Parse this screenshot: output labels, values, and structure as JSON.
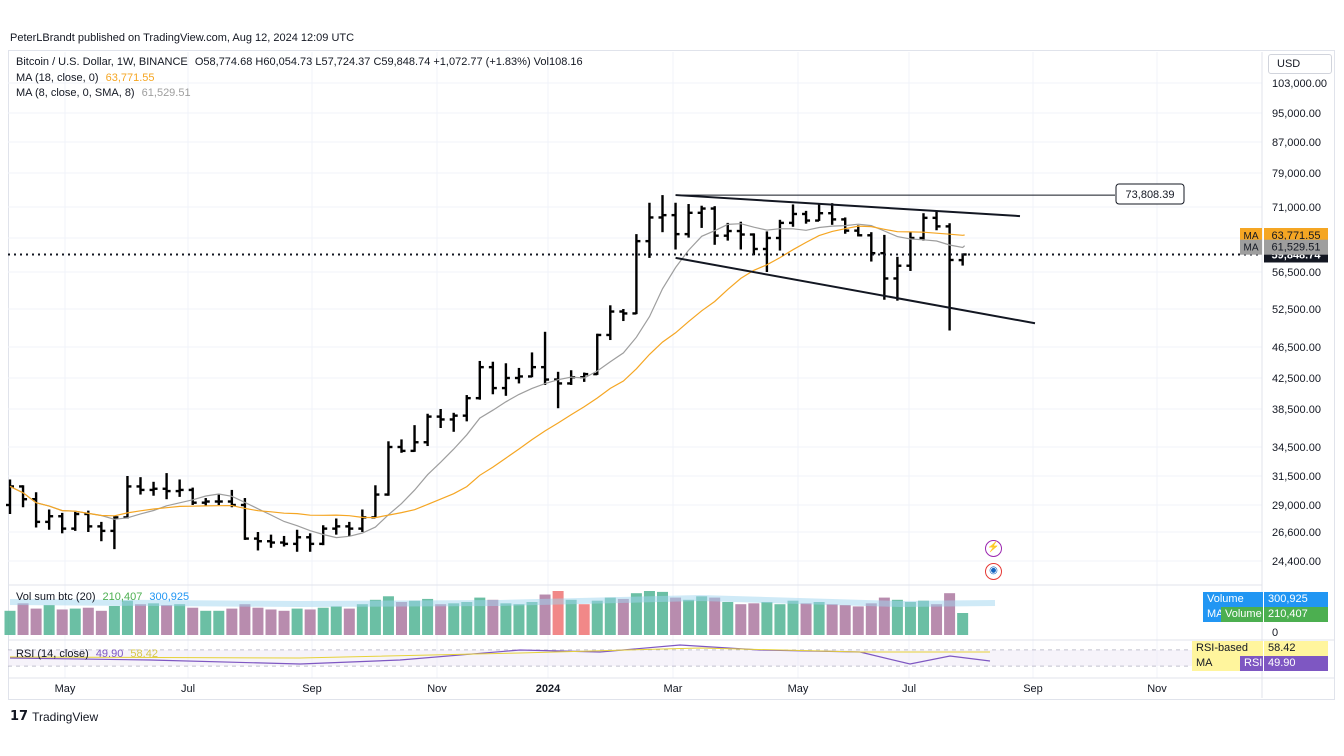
{
  "header": {
    "published_line": "PeterLBrandt published on TradingView.com, Aug 12, 2024 12:09 UTC"
  },
  "legend": {
    "symbol_line": "Bitcoin / U.S. Dollar, 1W, BINANCE",
    "ohlc": "O58,774.68 H60,054.73 L57,724.37 C59,848.74 +1,072.77 (+1.83%) Vol108.16",
    "ma1_label": "MA (18, close, 0)",
    "ma1_value": "63,771.55",
    "ma2_label": "MA (8, close, 0, SMA, 8)",
    "ma2_value": "61,529.51"
  },
  "price_axis": {
    "currency": "USD",
    "ticks": [
      "103,000.00",
      "95,000.00",
      "87,000.00",
      "79,000.00",
      "71,000.00",
      "63,000.00",
      "56,500.00",
      "52,500.00",
      "46,500.00",
      "42,500.00",
      "38,500.00",
      "34,500.00",
      "31,500.00",
      "29,000.00",
      "26,600.00",
      "24,400.00"
    ],
    "ma1_tag": "MA",
    "ma1_tag_value": "63,771.55",
    "ma2_tag": "MA",
    "ma2_tag_value": "61,529.51",
    "last_price": "59,848.74"
  },
  "annotation": {
    "high_label": "73,808.39"
  },
  "volume_pane": {
    "legend": "Vol sum btc (20)",
    "val1": "210,407",
    "val2": "300,925",
    "tag_ma_label": "Volume MA",
    "tag_ma_value": "300,925",
    "tag_vol_label": "Volume",
    "tag_vol_value": "210,407",
    "axis_zero": "0"
  },
  "rsi_pane": {
    "legend": "RSI (14, close)",
    "val1": "49.90",
    "val2": "58.42",
    "tag_ma_label": "RSI-based MA",
    "tag_ma_value": "58.42",
    "tag_rsi_label": "RSI",
    "tag_rsi_value": "49.90"
  },
  "time_axis": [
    "May",
    "Jul",
    "Sep",
    "Nov",
    "2024",
    "Mar",
    "May",
    "Jul",
    "Sep",
    "Nov"
  ],
  "footer": {
    "brand": "TradingView"
  },
  "colors": {
    "bar": "#000000",
    "ma18": "#f5a623",
    "ma8": "#9e9e9e",
    "vol_up": "#5bb89a",
    "vol_down": "#b07fa5",
    "vol_hi": "#ef7b7b",
    "rsi": "#7e57c2",
    "tag_vol_ma": "#2196f3",
    "tag_vol": "#4caf50",
    "tag_rsi_ma": "#fff59d",
    "tag_rsi": "#7e57c2"
  },
  "chart_data": {
    "type": "bar",
    "title": "",
    "interval": "1W",
    "ohlc_weekly": [
      [
        29000,
        31200,
        28200,
        30600
      ],
      [
        30600,
        30700,
        28800,
        29500
      ],
      [
        29500,
        30100,
        27000,
        27500
      ],
      [
        27500,
        28600,
        26800,
        28000
      ],
      [
        28000,
        28300,
        26500,
        26900
      ],
      [
        26900,
        28400,
        26700,
        28200
      ],
      [
        28200,
        28500,
        26600,
        27100
      ],
      [
        27100,
        27500,
        25900,
        26700
      ],
      [
        26700,
        28000,
        25300,
        27900
      ],
      [
        27900,
        31500,
        27800,
        30600
      ],
      [
        30600,
        31400,
        29900,
        30300
      ],
      [
        30300,
        31000,
        29800,
        30400
      ],
      [
        30400,
        31800,
        29500,
        30200
      ],
      [
        30200,
        31200,
        29700,
        30300
      ],
      [
        30300,
        30500,
        29000,
        29200
      ],
      [
        29200,
        29600,
        28900,
        29300
      ],
      [
        29300,
        29900,
        29000,
        29300
      ],
      [
        29300,
        30300,
        28800,
        29000
      ],
      [
        29000,
        29600,
        26000,
        26100
      ],
      [
        26100,
        26600,
        25200,
        25900
      ],
      [
        25900,
        26400,
        25400,
        25800
      ],
      [
        25800,
        26300,
        25500,
        25700
      ],
      [
        25700,
        26800,
        25100,
        26200
      ],
      [
        26200,
        26500,
        25100,
        25700
      ],
      [
        25700,
        27200,
        25600,
        26900
      ],
      [
        26900,
        27800,
        26400,
        27100
      ],
      [
        27100,
        27500,
        26300,
        26900
      ],
      [
        26900,
        28600,
        26600,
        27900
      ],
      [
        27900,
        30700,
        27900,
        29900
      ],
      [
        29900,
        35100,
        29800,
        34500
      ],
      [
        34500,
        35300,
        33900,
        34100
      ],
      [
        34100,
        36800,
        34000,
        35000
      ],
      [
        35000,
        38000,
        34600,
        37700
      ],
      [
        37700,
        38500,
        36500,
        37400
      ],
      [
        37400,
        38100,
        36100,
        37800
      ],
      [
        37800,
        40300,
        37200,
        39900
      ],
      [
        39900,
        44700,
        39700,
        43900
      ],
      [
        43900,
        44600,
        40400,
        41200
      ],
      [
        41200,
        44400,
        40200,
        42500
      ],
      [
        42500,
        43800,
        41800,
        42700
      ],
      [
        42700,
        45800,
        42600,
        43900
      ],
      [
        43900,
        48900,
        41600,
        42300
      ],
      [
        42300,
        43300,
        38600,
        41800
      ],
      [
        41800,
        43500,
        41600,
        42600
      ],
      [
        42600,
        43200,
        42000,
        43000
      ],
      [
        43000,
        48600,
        42900,
        48400
      ],
      [
        48400,
        52900,
        47600,
        52100
      ],
      [
        52100,
        52500,
        50600,
        51800
      ],
      [
        51800,
        64000,
        51700,
        62400
      ],
      [
        62400,
        72000,
        59200,
        68300
      ],
      [
        68300,
        73800,
        64500,
        68900
      ],
      [
        68900,
        72000,
        60800,
        64000
      ],
      [
        64000,
        71700,
        63100,
        69500
      ],
      [
        69500,
        71300,
        65600,
        70600
      ],
      [
        70600,
        71200,
        61700,
        63600
      ],
      [
        63600,
        66900,
        62500,
        64800
      ],
      [
        64800,
        67200,
        60800,
        63900
      ],
      [
        63900,
        64200,
        59700,
        60900
      ],
      [
        60900,
        64700,
        56500,
        63000
      ],
      [
        63000,
        67700,
        60600,
        66900
      ],
      [
        66900,
        71600,
        65900,
        69200
      ],
      [
        69200,
        70000,
        66700,
        67500
      ],
      [
        67500,
        71800,
        67400,
        69400
      ],
      [
        69400,
        71900,
        66400,
        67800
      ],
      [
        67800,
        68300,
        64100,
        64900
      ],
      [
        64900,
        66300,
        63400,
        63700
      ],
      [
        63700,
        64500,
        58500,
        60100
      ],
      [
        60100,
        63800,
        53500,
        55800
      ],
      [
        55800,
        59400,
        53400,
        57700
      ],
      [
        57700,
        64500,
        56700,
        63000
      ],
      [
        63000,
        69400,
        62500,
        68200
      ],
      [
        68200,
        69800,
        65000,
        66000
      ],
      [
        66000,
        66800,
        49100,
        58800
      ],
      [
        58774.68,
        60054.73,
        57724.37,
        59848.74
      ]
    ],
    "moving_averages": [
      {
        "name": "MA (18, close, 0)",
        "last": 63771.55
      },
      {
        "name": "MA (8, close, 0, SMA, 8)",
        "last": 61529.51
      }
    ],
    "trendlines": [
      {
        "label": "73,808.39",
        "from": [
          51,
          73808.39
        ],
        "to": [
          110,
          73808.39
        ]
      },
      {
        "from": [
          51,
          73808.39
        ],
        "to": [
          78,
          70200
        ]
      },
      {
        "from": [
          51,
          59200
        ],
        "to": [
          79,
          51200
        ]
      }
    ],
    "last_price": 59848.74
  }
}
